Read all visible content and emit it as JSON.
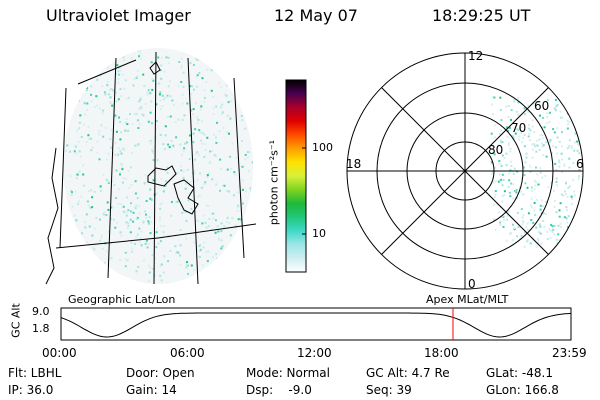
{
  "header": {
    "title": "Ultraviolet Imager",
    "date": "12 May 07",
    "time": "18:29:25 UT"
  },
  "colorbar": {
    "unit_label": "photon cm⁻²s⁻¹",
    "ticks": [
      "100",
      "10"
    ],
    "colors": [
      "#ffffff",
      "#cfeef0",
      "#9ee6e6",
      "#3fd9c8",
      "#22c77a",
      "#1fb83a",
      "#7fd31f",
      "#d8f03a",
      "#ffe200",
      "#ff9f00",
      "#ff4a00",
      "#e00000",
      "#a8002a",
      "#4a0050",
      "#000000"
    ]
  },
  "polar_plot": {
    "ring_labels": [
      "80",
      "70",
      "60"
    ],
    "mlt_labels": {
      "top": "12",
      "left": "18",
      "right": "6",
      "bottom": "0"
    }
  },
  "map_labels": {
    "left": "Geographic Lat/Lon",
    "right": "Apex MLat/MLT"
  },
  "altitude_plot": {
    "axis_label": "GC Alt",
    "y_ticks": [
      "9.0",
      "1.8"
    ],
    "x_ticks": [
      "00:00",
      "06:00",
      "12:00",
      "18:00",
      "23:59"
    ],
    "marker_color": "#ff0000"
  },
  "status": {
    "rows": [
      [
        "Flt: LBHL",
        "Door: Open",
        "Mode: Normal",
        "GC Alt: 4.7 Re",
        "GLat: -48.1"
      ],
      [
        "IP: 36.0",
        "Gain: 14",
        "Dsp:    -9.0",
        "Seq: 39",
        "GLon: 166.8"
      ]
    ]
  }
}
